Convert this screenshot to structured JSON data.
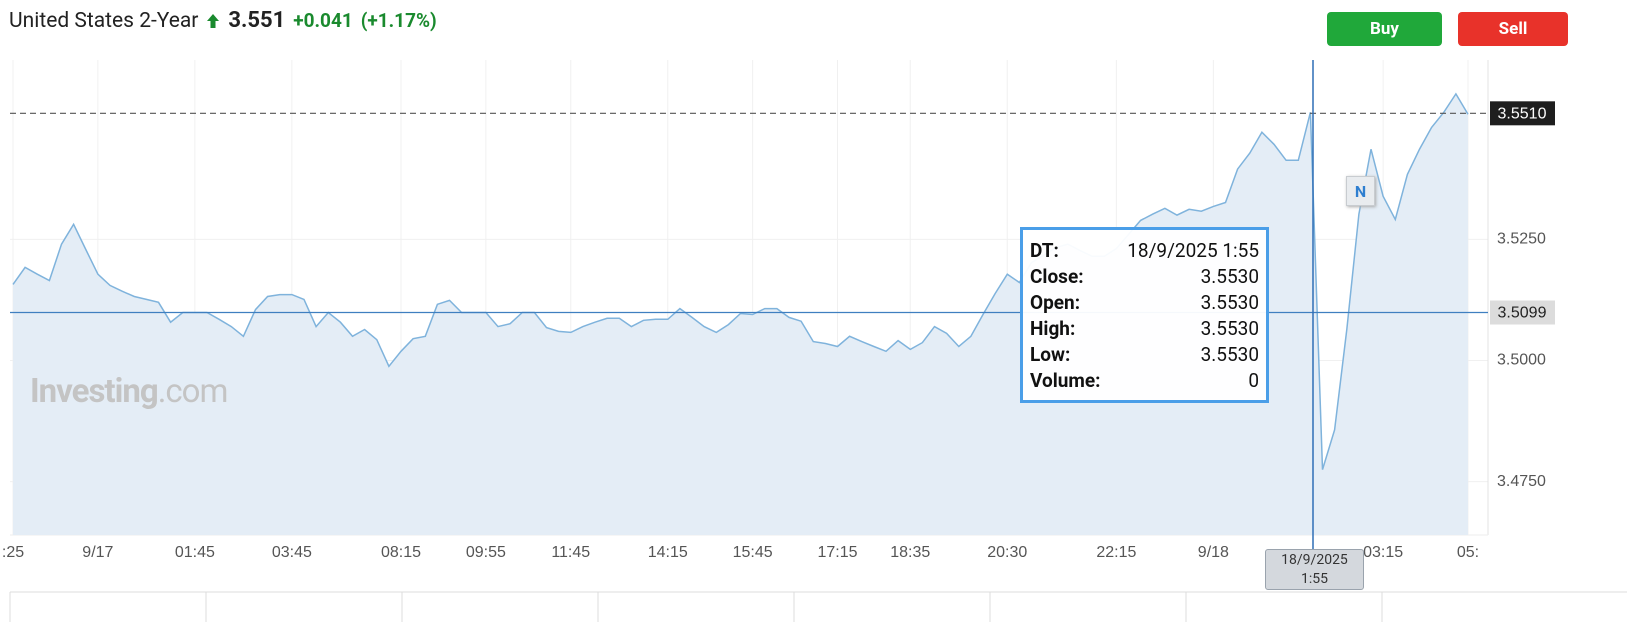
{
  "header": {
    "instrument": "United States 2-Year",
    "price": "3.551",
    "change": "+0.041",
    "change_percent": "(+1.17%)"
  },
  "buttons": {
    "buy": "Buy",
    "sell": "Sell"
  },
  "watermark": {
    "brand": "Investing",
    "suffix": ".com"
  },
  "chart_data": {
    "type": "area",
    "categories": [
      ":25",
      null,
      null,
      null,
      null,
      null,
      null,
      "9/17",
      null,
      null,
      null,
      null,
      null,
      null,
      null,
      "01:45",
      null,
      null,
      null,
      null,
      null,
      null,
      null,
      "03:45",
      null,
      null,
      null,
      null,
      null,
      null,
      null,
      null,
      "08:15",
      null,
      null,
      null,
      null,
      null,
      null,
      "09:55",
      null,
      null,
      null,
      null,
      null,
      null,
      "11:45",
      null,
      null,
      null,
      null,
      null,
      null,
      null,
      "14:15",
      null,
      null,
      null,
      null,
      null,
      null,
      "15:45",
      null,
      null,
      null,
      null,
      null,
      null,
      "17:15",
      null,
      null,
      null,
      null,
      null,
      "18:35",
      null,
      null,
      null,
      null,
      null,
      null,
      null,
      "20:30",
      null,
      null,
      null,
      null,
      null,
      null,
      null,
      null,
      "22:15",
      null,
      null,
      null,
      null,
      null,
      null,
      null,
      "9/18",
      null,
      null,
      null,
      null,
      null,
      null,
      null,
      null,
      null,
      null,
      null,
      null,
      null,
      "03:15",
      null,
      null,
      null,
      null,
      null,
      null,
      "05:"
    ],
    "values": [
      3.5157,
      3.5192,
      3.5178,
      3.5165,
      3.524,
      3.5281,
      3.5229,
      3.5178,
      3.5155,
      3.5143,
      3.5132,
      3.5126,
      3.512,
      3.5079,
      3.5099,
      3.5099,
      3.5099,
      3.5085,
      3.507,
      3.505,
      3.5105,
      3.5132,
      3.5136,
      3.5136,
      3.5126,
      3.507,
      3.5099,
      3.5079,
      3.505,
      3.5064,
      3.5043,
      3.4988,
      3.5019,
      3.5045,
      3.505,
      3.5116,
      3.5124,
      3.5099,
      3.5099,
      3.5099,
      3.507,
      3.5076,
      3.5099,
      3.5099,
      3.5068,
      3.506,
      3.5058,
      3.507,
      3.5079,
      3.5087,
      3.5087,
      3.507,
      3.5083,
      3.5085,
      3.5085,
      3.5107,
      3.5089,
      3.507,
      3.5058,
      3.5074,
      3.5097,
      3.5095,
      3.5107,
      3.5107,
      3.5089,
      3.5081,
      3.5039,
      3.5035,
      3.5029,
      3.505,
      3.5039,
      3.5029,
      3.5019,
      3.5041,
      3.5023,
      3.5037,
      3.507,
      3.5056,
      3.5029,
      3.505,
      3.5095,
      3.5138,
      3.5178,
      3.5161,
      3.5202,
      3.5217,
      3.5233,
      3.524,
      3.5227,
      3.5215,
      3.5215,
      3.5231,
      3.526,
      3.5289,
      3.5302,
      3.5314,
      3.53,
      3.5312,
      3.5308,
      3.5318,
      3.5326,
      3.5395,
      3.5428,
      3.5471,
      3.5446,
      3.5413,
      3.5413,
      3.5512,
      3.4775,
      3.4857,
      3.5064,
      3.5302,
      3.5436,
      3.5339,
      3.5291,
      3.5384,
      3.5436,
      3.5481,
      3.5512,
      3.555,
      3.5508
    ],
    "color": "#7fb3dc",
    "fill": "#e4edf6",
    "ylim": [
      3.464,
      3.562
    ],
    "yticks": [
      {
        "value": 3.475,
        "label": "3.4750"
      },
      {
        "value": 3.5,
        "label": "3.5000"
      },
      {
        "value": 3.525,
        "label": "3.5250"
      }
    ],
    "grid": true,
    "reference_lines": [
      {
        "value": 3.551,
        "label": "3.5510",
        "style": "dashed",
        "color": "#555555",
        "label_bg": "#1e1e1e",
        "label_color": "#ffffff"
      },
      {
        "value": 3.5099,
        "label": "3.5099",
        "style": "solid",
        "color": "#3f7fc0",
        "label_bg": "#dcdcdc",
        "label_color": "#222222"
      }
    ],
    "crosshair": {
      "label": "18/9/2025 1:55"
    },
    "marker": "N",
    "tooltip": [
      [
        "DT:",
        "18/9/2025 1:55"
      ],
      [
        "Close:",
        "3.5530"
      ],
      [
        "Open:",
        "3.5530"
      ],
      [
        "High:",
        "3.5530"
      ],
      [
        "Low:",
        "3.5530"
      ],
      [
        "Volume:",
        "0"
      ]
    ]
  }
}
